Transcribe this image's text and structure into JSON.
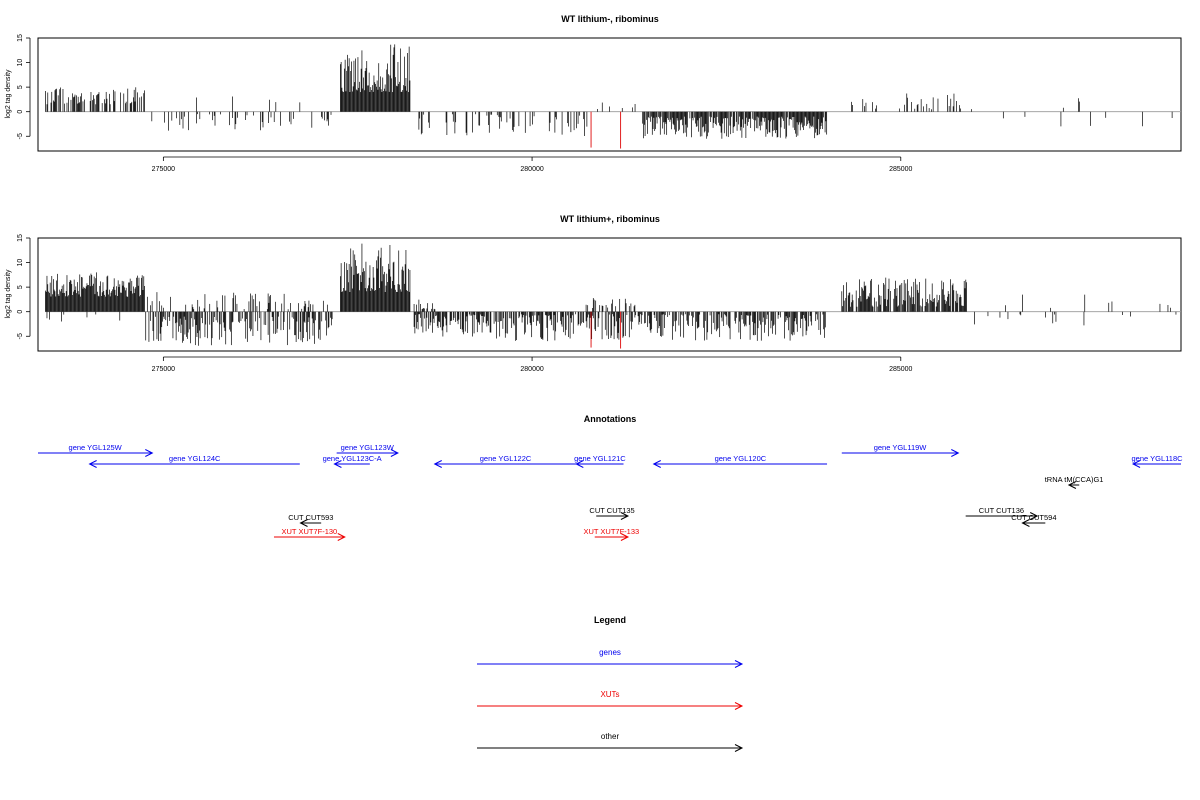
{
  "chart_data": [
    {
      "type": "bar",
      "title": "WT lithium-, ribominus",
      "ylabel": "log2 tag density",
      "xlim": [
        273300,
        288800
      ],
      "ylim": [
        -8,
        15
      ],
      "yticks": [
        -5,
        0,
        5,
        10,
        15
      ],
      "xticks": [
        275000,
        280000,
        285000
      ],
      "tick_labels_y": [
        "-5",
        "0",
        "5",
        "10",
        "15"
      ],
      "tick_labels_x": [
        "275000",
        "280000",
        "285000"
      ],
      "bar_color": "#000000",
      "highlight_color": "#e02020",
      "segments": [
        {
          "from": 273400,
          "to": 274750,
          "sign": 1,
          "min": 1.5,
          "max": 5,
          "density": 0.5
        },
        {
          "from": 274800,
          "to": 277300,
          "sign": -1,
          "min": 0.5,
          "max": 4,
          "density": 0.18
        },
        {
          "from": 274800,
          "to": 277300,
          "sign": 1,
          "min": 1,
          "max": 4,
          "density": 0.03
        },
        {
          "from": 277400,
          "to": 278350,
          "sign": 1,
          "min": 4,
          "max": 14,
          "density": 1.0
        },
        {
          "from": 278400,
          "to": 280750,
          "sign": -1,
          "min": 0.5,
          "max": 5,
          "density": 0.3
        },
        {
          "from": 280800,
          "to": 281400,
          "sign": 1,
          "min": 0.5,
          "max": 2.5,
          "density": 0.08
        },
        {
          "from": 281500,
          "to": 284000,
          "sign": -1,
          "min": 1,
          "max": 5.5,
          "density": 0.9
        },
        {
          "from": 284300,
          "to": 286000,
          "sign": 1,
          "min": 0.5,
          "max": 4,
          "density": 0.25
        },
        {
          "from": 286000,
          "to": 288800,
          "sign": 1,
          "min": 0.5,
          "max": 3,
          "density": 0.02
        },
        {
          "from": 286000,
          "to": 288800,
          "sign": -1,
          "min": 1,
          "max": 3,
          "density": 0.03
        }
      ],
      "highlights": [
        {
          "x": 280800,
          "y": -7.3
        },
        {
          "x": 281200,
          "y": -7.5
        }
      ]
    },
    {
      "type": "bar",
      "title": "WT lithium+, ribominus",
      "ylabel": "log2 tag density",
      "xlim": [
        273300,
        288800
      ],
      "ylim": [
        -8,
        15
      ],
      "yticks": [
        -5,
        0,
        5,
        10,
        15
      ],
      "xticks": [
        275000,
        280000,
        285000
      ],
      "tick_labels_y": [
        "-5",
        "0",
        "5",
        "10",
        "15"
      ],
      "tick_labels_x": [
        "275000",
        "280000",
        "285000"
      ],
      "bar_color": "#000000",
      "highlight_color": "#e02020",
      "segments": [
        {
          "from": 273400,
          "to": 274750,
          "sign": 1,
          "min": 3,
          "max": 8,
          "density": 1.0
        },
        {
          "from": 273400,
          "to": 274750,
          "sign": -1,
          "min": 0.5,
          "max": 2,
          "density": 0.05
        },
        {
          "from": 274750,
          "to": 277300,
          "sign": -1,
          "min": 1,
          "max": 7,
          "density": 0.6
        },
        {
          "from": 274750,
          "to": 277300,
          "sign": 1,
          "min": 0.5,
          "max": 4,
          "density": 0.25
        },
        {
          "from": 277400,
          "to": 278350,
          "sign": 1,
          "min": 4,
          "max": 14,
          "density": 1.0
        },
        {
          "from": 278400,
          "to": 278700,
          "sign": 1,
          "min": 0.5,
          "max": 2.5,
          "density": 0.5
        },
        {
          "from": 278400,
          "to": 284000,
          "sign": -1,
          "min": 0.5,
          "max": 6,
          "density": 0.7
        },
        {
          "from": 280700,
          "to": 281400,
          "sign": 1,
          "min": 0.5,
          "max": 3,
          "density": 0.3
        },
        {
          "from": 284200,
          "to": 285900,
          "sign": 1,
          "min": 1,
          "max": 7,
          "density": 0.8
        },
        {
          "from": 285900,
          "to": 288800,
          "sign": -1,
          "min": 0.5,
          "max": 3,
          "density": 0.06
        },
        {
          "from": 285900,
          "to": 288800,
          "sign": 1,
          "min": 0.5,
          "max": 3.5,
          "density": 0.04
        }
      ],
      "highlights": [
        {
          "x": 280800,
          "y": -7.3
        },
        {
          "x": 281200,
          "y": -7.5
        }
      ]
    }
  ],
  "annotations": {
    "title": "Annotations",
    "colors": {
      "gene": "#0000ee",
      "xut": "#ee0000",
      "other": "#000000"
    },
    "features": [
      {
        "label": "gene YGL125W",
        "kind": "gene",
        "start": 273300,
        "end": 274850,
        "strand": "+",
        "row": 0
      },
      {
        "label": "gene YGL124C",
        "kind": "gene",
        "start": 274000,
        "end": 276850,
        "strand": "-",
        "row": 1
      },
      {
        "label": "gene YGL123W",
        "kind": "gene",
        "start": 277350,
        "end": 278180,
        "strand": "+",
        "row": 0
      },
      {
        "label": "gene YGL123C-A",
        "kind": "gene",
        "start": 277320,
        "end": 277800,
        "strand": "-",
        "row": 1
      },
      {
        "label": "gene YGL122C",
        "kind": "gene",
        "start": 278680,
        "end": 280600,
        "strand": "-",
        "row": 1
      },
      {
        "label": "gene YGL121C",
        "kind": "gene",
        "start": 280600,
        "end": 281240,
        "strand": "-",
        "row": 1
      },
      {
        "label": "gene YGL120C",
        "kind": "gene",
        "start": 281650,
        "end": 284000,
        "strand": "-",
        "row": 1
      },
      {
        "label": "gene YGL119W",
        "kind": "gene",
        "start": 284200,
        "end": 285780,
        "strand": "+",
        "row": 0
      },
      {
        "label": "gene YGL118C",
        "kind": "gene",
        "start": 288150,
        "end": 288800,
        "strand": "-",
        "row": 1
      },
      {
        "label": "tRNA tM(CCA)G1",
        "kind": "other",
        "start": 287280,
        "end": 287420,
        "strand": "-",
        "row": 2
      },
      {
        "label": "CUT CUT593",
        "kind": "other",
        "start": 276860,
        "end": 277140,
        "strand": "-",
        "row": 4
      },
      {
        "label": "XUT XUT7F-130",
        "kind": "xut",
        "start": 276500,
        "end": 277460,
        "strand": "+",
        "row": 5
      },
      {
        "label": "CUT CUT135",
        "kind": "other",
        "start": 280870,
        "end": 281300,
        "strand": "+",
        "row": 3
      },
      {
        "label": "XUT XUT7F-133",
        "kind": "xut",
        "start": 280850,
        "end": 281300,
        "strand": "+",
        "row": 5
      },
      {
        "label": "CUT CUT136",
        "kind": "other",
        "start": 285880,
        "end": 286850,
        "strand": "+",
        "row": 3
      },
      {
        "label": "CUT CUT594",
        "kind": "other",
        "start": 286650,
        "end": 286960,
        "strand": "-",
        "row": 4
      }
    ]
  },
  "legend": {
    "title": "Legend",
    "entries": [
      {
        "label": "genes",
        "color": "#0000ee"
      },
      {
        "label": "XUTs",
        "color": "#ee0000"
      },
      {
        "label": "other",
        "color": "#000000"
      }
    ]
  }
}
